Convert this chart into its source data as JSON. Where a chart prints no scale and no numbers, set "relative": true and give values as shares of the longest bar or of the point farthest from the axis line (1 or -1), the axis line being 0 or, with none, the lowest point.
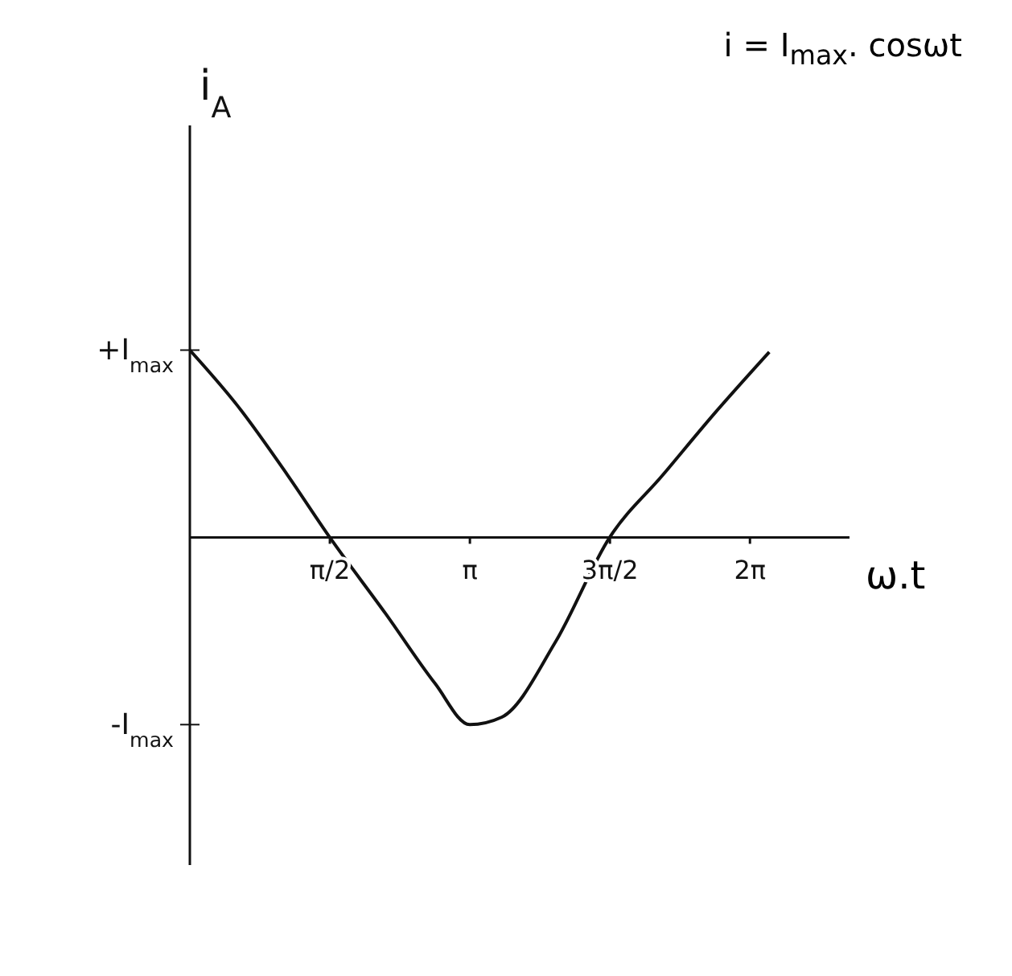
{
  "chart_data": {
    "type": "line",
    "title": "i = I$_{max}$. cosωt",
    "xlabel": "ω.t",
    "relative": true,
    "annotations": [
      "+I$_{max}$",
      "-I$_{max}$",
      "i$_{A}$"
    ],
    "x": [
      0,
      0.54,
      1.1,
      1.57,
      2.2,
      2.75,
      3.14,
      3.5,
      4.1,
      4.71,
      5.3,
      5.9,
      6.5
    ],
    "series": [
      {
        "color": "#111111",
        "values": [
          1,
          0.7,
          0.33,
          0,
          -0.41,
          -0.78,
          -1,
          -0.96,
          -0.56,
          0,
          0.33,
          0.67,
          0.99
        ]
      }
    ],
    "xlim": [
      0,
      7.4
    ],
    "xticks": [
      {
        "value": 1.5708,
        "label": "π/2"
      },
      {
        "value": 3.1416,
        "label": "π"
      },
      {
        "value": 4.7124,
        "label": "3π/2"
      },
      {
        "value": 6.2832,
        "label": "2π"
      }
    ],
    "grid": false,
    "marker": "none",
    "line_style": "solid"
  }
}
